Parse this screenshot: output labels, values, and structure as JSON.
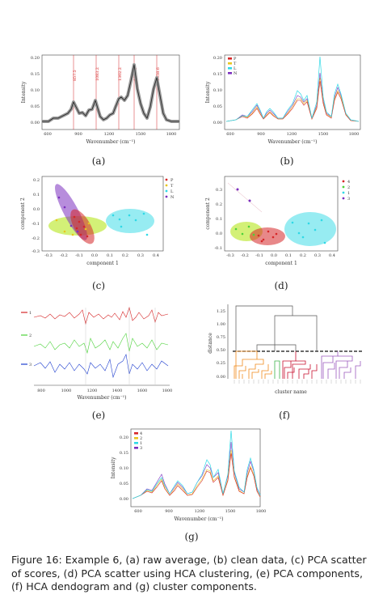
{
  "caption": {
    "text": "Figure 16:  Example 6, (a) raw average, (b) clean data, (c) PCA scatter of scores, (d) PCA scatter using HCA clustering, (e) PCA components, (f) HCA dendogram and (g) cluster components."
  },
  "colors": {
    "P": "#d62728",
    "T": "#e8c51f",
    "L": "#2fd9e6",
    "N": "#7b2fbf",
    "c4": "#d62728",
    "c2": "#4cd23a",
    "c1": "#2fd9e6",
    "c3": "#7b2fbf",
    "hca_orange": "#f08a1c",
    "hca_green": "#3cb44b",
    "hca_red": "#c8102e",
    "hca_purple": "#9c5bbf"
  },
  "panels": {
    "a": {
      "label": "(a)",
      "ylabel": "Intensity",
      "xlabel": "Wavenumber (cm⁻¹)",
      "yticks": [
        "0.20",
        "0.15",
        "0.10",
        "0.05",
        "0.00"
      ],
      "xticks": [
        "600",
        "900",
        "1200",
        "1500",
        "1800"
      ],
      "peaks": [
        "857.5",
        "1083.2",
        "1302.2",
        "1448.6",
        "1658.6"
      ]
    },
    "b": {
      "label": "(b)",
      "ylabel": "Intensity",
      "xlabel": "Wavenumber (cm⁻¹)",
      "yticks": [
        "0.20",
        "0.15",
        "0.10",
        "0.05",
        "0.00"
      ],
      "xticks": [
        "600",
        "900",
        "1200",
        "1500",
        "1800"
      ],
      "legend": [
        "P",
        "T",
        "L",
        "N"
      ]
    },
    "c": {
      "label": "(c)",
      "ylabel": "component 2",
      "xlabel": "component 1",
      "yticks": [
        "0.2",
        "0.1",
        "0.0",
        "-0.1",
        "-0.2",
        "-0.3"
      ],
      "xticks": [
        "-0.3",
        "-0.2",
        "-0.1",
        "0.0",
        "0.1",
        "0.2",
        "0.3",
        "0.4"
      ],
      "legend": [
        "P",
        "T",
        "L",
        "N"
      ]
    },
    "d": {
      "label": "(d)",
      "ylabel": "component 2",
      "xlabel": "component 1",
      "yticks": [
        "0.3",
        "0.2",
        "0.1",
        "0.0",
        "-0.1"
      ],
      "xticks": [
        "-0.3",
        "-0.2",
        "-0.1",
        "0.0",
        "0.1",
        "0.2",
        "0.3",
        "0.4"
      ],
      "legend": [
        "4",
        "2",
        "1",
        "3"
      ]
    },
    "e": {
      "label": "(e)",
      "xlabel": "Wavenumber (cm⁻¹)",
      "xticks": [
        "800",
        "1000",
        "1200",
        "1400",
        "1600",
        "1800"
      ],
      "legend": [
        "1",
        "2",
        "3"
      ]
    },
    "f": {
      "label": "(f)",
      "ylabel": "distance",
      "xlabel": "cluster name",
      "yticks": [
        "1.25",
        "1.00",
        "0.75",
        "0.50",
        "0.25",
        "0.00"
      ]
    },
    "g": {
      "label": "(g)",
      "ylabel": "Intensity",
      "xlabel": "Wavenumber (cm⁻¹)",
      "yticks": [
        "0.20",
        "0.15",
        "0.10",
        "0.05",
        "0.00"
      ],
      "xticks": [
        "600",
        "900",
        "1200",
        "1500",
        "1800"
      ],
      "legend": [
        "4",
        "2",
        "1",
        "3"
      ]
    }
  }
}
